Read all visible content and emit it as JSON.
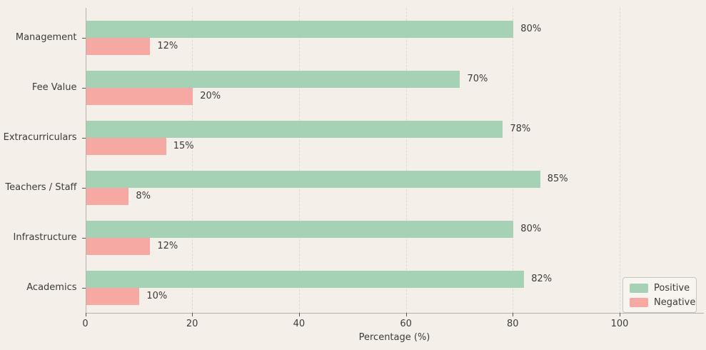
{
  "chart_data": {
    "type": "bar",
    "orientation": "horizontal",
    "title": "",
    "xlabel": "Percentage (%)",
    "ylabel": "",
    "categories": [
      "Management",
      "Fee Value",
      "Extracurriculars",
      "Teachers / Staff",
      "Infrastructure",
      "Academics"
    ],
    "series": [
      {
        "name": "Positive",
        "color": "#a5d2b5",
        "values": [
          80,
          70,
          78,
          85,
          80,
          82
        ]
      },
      {
        "name": "Negative",
        "color": "#f6a8a2",
        "values": [
          12,
          20,
          15,
          8,
          12,
          10
        ]
      }
    ],
    "data_labels": {
      "Positive": [
        "80%",
        "70%",
        "78%",
        "85%",
        "80%",
        "82%"
      ],
      "Negative": [
        "12%",
        "20%",
        "15%",
        "8%",
        "12%",
        "10%"
      ]
    },
    "value_suffix": "%",
    "x_ticks": [
      "0",
      "20",
      "40",
      "60",
      "80",
      "100"
    ],
    "x_tick_values": [
      0,
      20,
      40,
      60,
      80,
      100
    ],
    "xlim": [
      0,
      115.7
    ],
    "grid": "vertical-dashed",
    "legend_position": "lower-right",
    "colors": {
      "background": "#f4efe9",
      "grid": "#dcd8d2",
      "spine": "#b7b2ac",
      "tick": "#57534e",
      "text": "#3d3b38",
      "legend_border": "#cac5bf",
      "legend_background": "#f8f4ef"
    }
  }
}
